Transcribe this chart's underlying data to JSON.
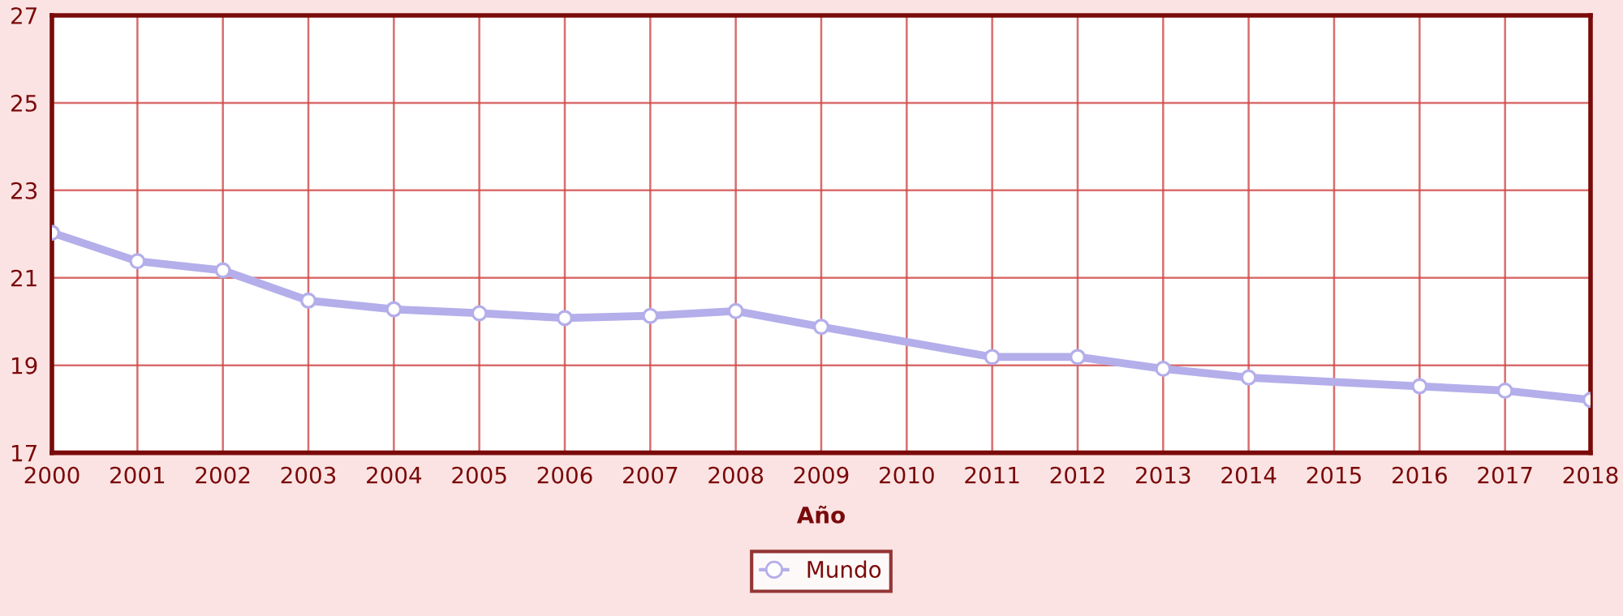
{
  "chart_data": {
    "type": "line",
    "xlabel": "Año",
    "x": [
      2000,
      2001,
      2002,
      2003,
      2004,
      2005,
      2006,
      2007,
      2008,
      2009,
      2011,
      2012,
      2013,
      2014,
      2016,
      2017,
      2018
    ],
    "series": [
      {
        "name": "Mundo",
        "color": "#b4aeea",
        "values": [
          22.03,
          21.38,
          21.17,
          20.48,
          20.28,
          20.19,
          20.08,
          20.13,
          20.24,
          19.88,
          19.19,
          19.19,
          18.92,
          18.72,
          18.52,
          18.42,
          18.21
        ]
      }
    ],
    "xlim": [
      2000,
      2018
    ],
    "xticks": [
      2000,
      2001,
      2002,
      2003,
      2004,
      2005,
      2006,
      2007,
      2008,
      2009,
      2010,
      2011,
      2012,
      2013,
      2014,
      2015,
      2016,
      2017,
      2018
    ],
    "ylim": [
      17,
      27
    ],
    "yticks": [
      17,
      19,
      21,
      23,
      25,
      27
    ],
    "grid": true,
    "legend": "bottom",
    "marker": "circle",
    "line_style": "solid"
  }
}
